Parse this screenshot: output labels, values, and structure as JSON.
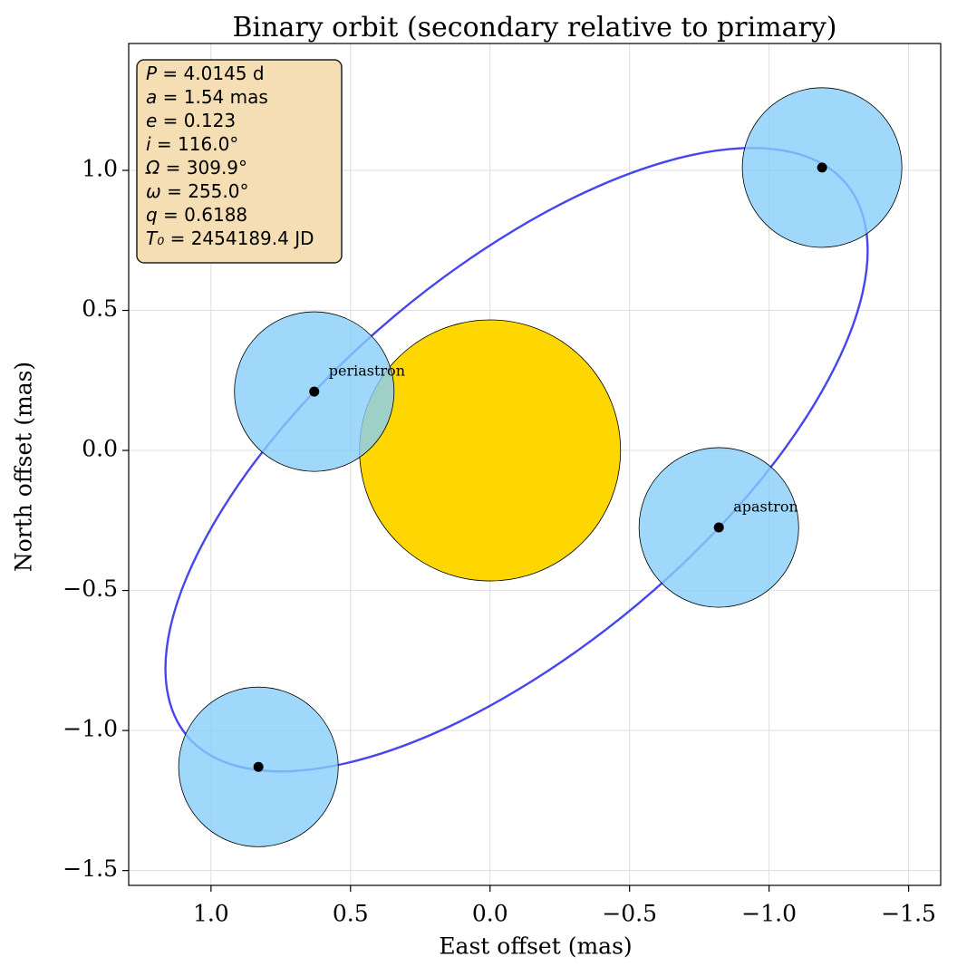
{
  "chart_data": {
    "type": "orbit",
    "title": "Binary orbit (secondary relative to primary)",
    "x_label": "East offset (mas)",
    "y_label": "North offset (mas)",
    "xlim": [
      1.295,
      -1.615
    ],
    "ylim": [
      -1.553,
      1.453
    ],
    "x_inverted": true,
    "grid": true,
    "xticks": [
      {
        "value": 1.0,
        "label": "1.0"
      },
      {
        "value": 0.5,
        "label": "0.5"
      },
      {
        "value": 0.0,
        "label": "0.0"
      },
      {
        "value": -0.5,
        "label": "−0.5"
      },
      {
        "value": -1.0,
        "label": "−1.0"
      },
      {
        "value": -1.5,
        "label": "−1.5"
      }
    ],
    "yticks": [
      {
        "value": 1.0,
        "label": "1.0"
      },
      {
        "value": 0.5,
        "label": "0.5"
      },
      {
        "value": 0.0,
        "label": "0.0"
      },
      {
        "value": -0.5,
        "label": "−0.5"
      },
      {
        "value": -1.0,
        "label": "−1.0"
      },
      {
        "value": -1.5,
        "label": "−1.5"
      }
    ],
    "orbit": {
      "color": "#4646ee",
      "x": [
        0.63,
        0.871,
        1.047,
        1.145,
        1.158,
        1.086,
        0.933,
        0.71,
        0.432,
        0.119,
        -0.209,
        -0.529,
        -0.82,
        -1.061,
        -1.237,
        -1.335,
        -1.348,
        -1.276,
        -1.123,
        -0.9,
        -0.622,
        -0.309,
        0.019,
        0.339,
        0.63
      ],
      "y": [
        0.21,
        -0.079,
        -0.366,
        -0.629,
        -0.851,
        -1.019,
        -1.119,
        -1.145,
        -1.095,
        -0.973,
        -0.786,
        -0.549,
        -0.276,
        0.013,
        0.3,
        0.563,
        0.785,
        0.953,
        1.053,
        1.079,
        1.029,
        0.907,
        0.72,
        0.483,
        0.21
      ]
    },
    "primary": {
      "x": 0.0,
      "y": 0.0,
      "radius": 0.466,
      "color": "#ffd700"
    },
    "secondary": {
      "x": [
        0.63,
        -0.82,
        -1.19,
        0.83
      ],
      "y": [
        0.21,
        -0.275,
        1.01,
        -1.13
      ],
      "radius": 0.285,
      "color": "#87cefa",
      "labels": [
        "periastron",
        "apastron",
        null,
        null
      ]
    },
    "parameters": [
      {
        "symbol": "P",
        "text": " = 4.0145 d"
      },
      {
        "symbol": "a",
        "text": " = 1.54 mas"
      },
      {
        "symbol": "e",
        "text": " = 0.123"
      },
      {
        "symbol": "i",
        "text": " = 116.0°"
      },
      {
        "symbol": "Ω",
        "text": " = 309.9°"
      },
      {
        "symbol": "ω",
        "text": " = 255.0°"
      },
      {
        "symbol": "q",
        "text": " = 0.6188"
      },
      {
        "symbol": "T₀",
        "text": " = 2454189.4 JD"
      }
    ]
  }
}
